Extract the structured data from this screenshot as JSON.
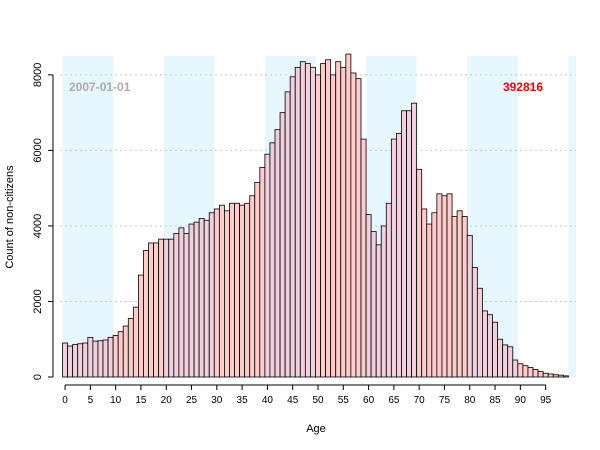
{
  "chart_data": {
    "type": "bar",
    "title": "",
    "xlabel": "Age",
    "ylabel": "Count of non-citizens",
    "xlim": [
      -1,
      101
    ],
    "ylim": [
      0,
      8500
    ],
    "x_ticks": [
      0,
      5,
      10,
      15,
      20,
      25,
      30,
      35,
      40,
      45,
      50,
      55,
      60,
      65,
      70,
      75,
      80,
      85,
      90,
      95
    ],
    "y_ticks": [
      0,
      2000,
      4000,
      6000,
      8000
    ],
    "y_gridlines": true,
    "band_width_years": 10,
    "colors": {
      "band": "#e6f7ff",
      "bar_odd_decade": "#ffcccc",
      "bar_even_decade": "#f0d0dc",
      "bar_edge": "#000000",
      "grid": "#c8c8c8",
      "date_annot": "#aaaaaa",
      "total_annot": "#ff0000"
    },
    "annotations": {
      "date": "2007-01-01",
      "total": "392816"
    },
    "ages": [
      0,
      1,
      2,
      3,
      4,
      5,
      6,
      7,
      8,
      9,
      10,
      11,
      12,
      13,
      14,
      15,
      16,
      17,
      18,
      19,
      20,
      21,
      22,
      23,
      24,
      25,
      26,
      27,
      28,
      29,
      30,
      31,
      32,
      33,
      34,
      35,
      36,
      37,
      38,
      39,
      40,
      41,
      42,
      43,
      44,
      45,
      46,
      47,
      48,
      49,
      50,
      51,
      52,
      53,
      54,
      55,
      56,
      57,
      58,
      59,
      60,
      61,
      62,
      63,
      64,
      65,
      66,
      67,
      68,
      69,
      70,
      71,
      72,
      73,
      74,
      75,
      76,
      77,
      78,
      79,
      80,
      81,
      82,
      83,
      84,
      85,
      86,
      87,
      88,
      89,
      90,
      91,
      92,
      93,
      94,
      95,
      96,
      97,
      98,
      99
    ],
    "values": [
      900,
      820,
      860,
      880,
      900,
      1050,
      950,
      960,
      980,
      1050,
      1100,
      1200,
      1350,
      1550,
      1850,
      2700,
      3350,
      3550,
      3550,
      3650,
      3650,
      3650,
      3800,
      3950,
      3800,
      4050,
      4100,
      4200,
      4150,
      4350,
      4450,
      4550,
      4400,
      4600,
      4600,
      4550,
      4600,
      4800,
      5150,
      5550,
      5900,
      6200,
      6550,
      7000,
      7550,
      7950,
      8200,
      8350,
      8300,
      8200,
      8000,
      8300,
      8400,
      8000,
      8350,
      8200,
      8550,
      8050,
      7900,
      6300,
      4300,
      3850,
      3500,
      4000,
      4600,
      6300,
      6450,
      7050,
      7050,
      7250,
      5500,
      4450,
      4050,
      4350,
      4850,
      4800,
      4850,
      4250,
      4400,
      4250,
      3750,
      2900,
      2350,
      1750,
      1650,
      1450,
      1000,
      850,
      800,
      450,
      350,
      300,
      250,
      200,
      150,
      100,
      80,
      60,
      50,
      30
    ]
  }
}
